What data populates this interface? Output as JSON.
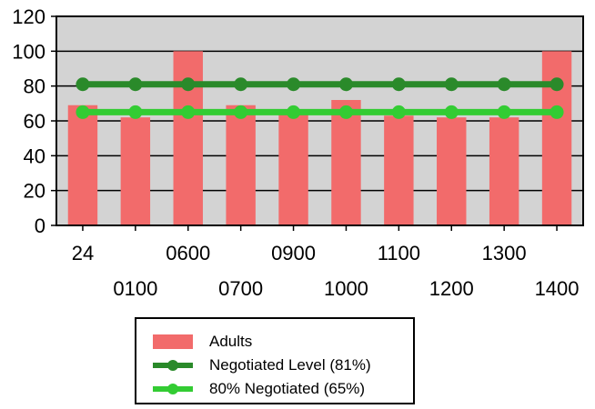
{
  "chart_data": {
    "type": "bar",
    "categories": [
      "24",
      "0100",
      "0600",
      "0700",
      "0900",
      "1000",
      "1100",
      "1200",
      "1300",
      "1400"
    ],
    "ylim": [
      0,
      120
    ],
    "yticks": [
      0,
      20,
      40,
      60,
      80,
      100,
      120
    ],
    "grid": true,
    "title": "",
    "xlabel": "",
    "ylabel": "",
    "legend_position": "bottom",
    "plot_background": "#d3d3d3",
    "series": [
      {
        "name": "Adults",
        "kind": "bar",
        "color": "#f26b6b",
        "values": [
          69,
          62,
          100,
          69,
          66,
          72,
          63,
          62,
          62,
          100
        ]
      },
      {
        "name": "Negotiated Level (81%)",
        "kind": "line",
        "color": "#2a8a2a",
        "values": [
          81,
          81,
          81,
          81,
          81,
          81,
          81,
          81,
          81,
          81
        ]
      },
      {
        "name": "80% Negotiated (65%)",
        "kind": "line",
        "color": "#33cc33",
        "values": [
          65,
          65,
          65,
          65,
          65,
          65,
          65,
          65,
          65,
          65
        ]
      }
    ]
  }
}
